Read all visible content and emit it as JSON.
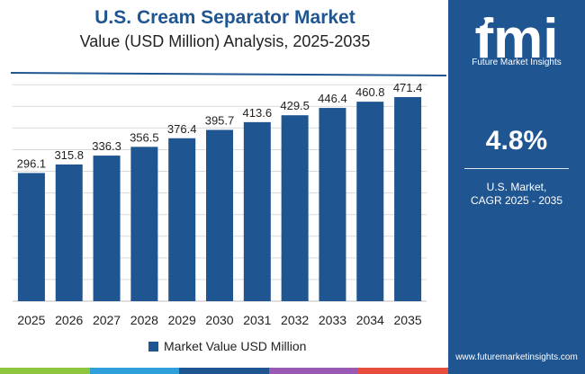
{
  "header": {
    "title": "U.S. Cream Separator Market",
    "subtitle": "Value (USD Million) Analysis, 2025-2035"
  },
  "legend": {
    "label": "Market Value USD Million"
  },
  "side_panel": {
    "logo_letters": "fmi",
    "logo_subtitle": "Future Market Insights",
    "cagr_value": "4.8%",
    "cagr_label_line1": "U.S. Market,",
    "cagr_label_line2": "CAGR 2025 - 2035",
    "website": "www.futuremarketinsights.com"
  },
  "colors": {
    "bar": "#1f5591",
    "panel": "#1f5591",
    "gridline": "#d9d9d9",
    "bottom_bar": [
      "#8cc63f",
      "#2e9fd8",
      "#1f5591",
      "#9b59b6",
      "#e74c3c"
    ]
  },
  "chart_data": {
    "type": "bar",
    "categories": [
      "2025",
      "2026",
      "2027",
      "2028",
      "2029",
      "2030",
      "2031",
      "2032",
      "2033",
      "2034",
      "2035"
    ],
    "series": [
      {
        "name": "Market Value USD Million",
        "values": [
          296.1,
          315.8,
          336.3,
          356.5,
          376.4,
          395.7,
          413.6,
          429.5,
          446.4,
          460.8,
          471.4
        ],
        "labels": [
          "296.1",
          "315.8",
          "336.3",
          "356.5",
          "376.4",
          "395.7",
          "413.6",
          "429.5",
          "446.4",
          "460.8",
          "471.4"
        ]
      }
    ],
    "xlabel": "",
    "ylabel": "",
    "ylim": [
      0,
      550
    ],
    "grid": true,
    "legend_position": "bottom"
  }
}
